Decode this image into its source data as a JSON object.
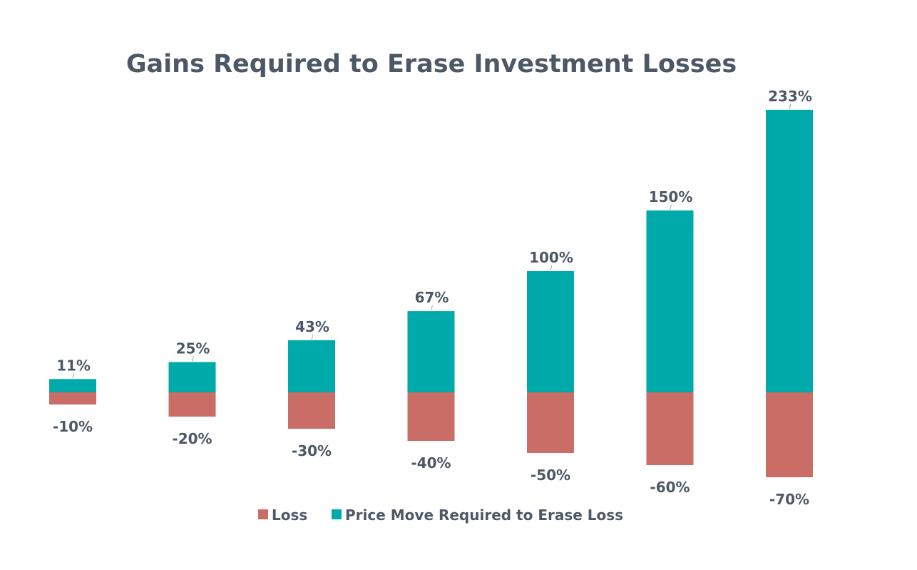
{
  "chart_data": {
    "type": "bar",
    "title": "Gains Required to Erase Investment Losses",
    "xlabel": "",
    "ylabel": "",
    "grid": false,
    "legend_position": "bottom",
    "categories": [
      "",
      "",
      "",
      "",
      "",
      "",
      ""
    ],
    "series": [
      {
        "name": "Loss",
        "color": "#c96d66",
        "values": [
          -10,
          -20,
          -30,
          -40,
          -50,
          -60,
          -70
        ],
        "labels": [
          "-10%",
          "-20%",
          "-30%",
          "-40%",
          "-50%",
          "-60%",
          "-70%"
        ]
      },
      {
        "name": "Price Move Required to Erase Loss",
        "color": "#00aaaa",
        "values": [
          11,
          25,
          43,
          67,
          100,
          150,
          233
        ],
        "labels": [
          "11%",
          "25%",
          "43%",
          "67%",
          "100%",
          "150%",
          "233%"
        ]
      }
    ],
    "ylim": [
      -70,
      233
    ]
  },
  "colors": {
    "text": "#4d5866",
    "background": "#ffffff"
  }
}
